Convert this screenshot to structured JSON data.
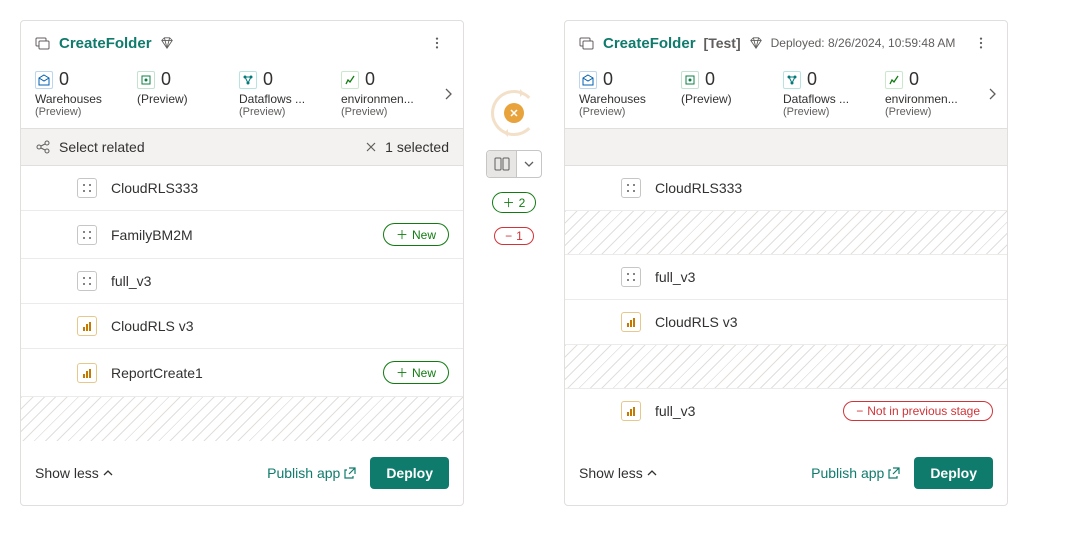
{
  "left": {
    "title": "CreateFolder",
    "stats": [
      {
        "value": "0",
        "label": "Warehouses",
        "sub": "(Preview)",
        "iconColor": "icon-blue"
      },
      {
        "value": "0",
        "label": "(Preview)",
        "sub": "",
        "iconColor": "icon-green"
      },
      {
        "value": "0",
        "label": "Dataflows ...",
        "sub": "(Preview)",
        "iconColor": "icon-teal"
      },
      {
        "value": "0",
        "label": "environmen...",
        "sub": "(Preview)",
        "iconColor": "icon-lime"
      }
    ],
    "selectBar": {
      "label": "Select related",
      "countText": "1 selected"
    },
    "items": [
      {
        "name": "CloudRLS333",
        "icon": "dots",
        "badge": ""
      },
      {
        "name": "FamilyBM2M",
        "icon": "dots",
        "badge": "new"
      },
      {
        "name": "full_v3",
        "icon": "dots",
        "badge": ""
      },
      {
        "name": "CloudRLS v3",
        "icon": "bars",
        "badge": ""
      },
      {
        "name": "ReportCreate1",
        "icon": "bars",
        "badge": "new"
      }
    ],
    "newLabel": "New",
    "showLess": "Show less",
    "publish": "Publish app",
    "deploy": "Deploy"
  },
  "right": {
    "title": "CreateFolder",
    "tag": "[Test]",
    "deployed": "Deployed: 8/26/2024, 10:59:48 AM",
    "stats": [
      {
        "value": "0",
        "label": "Warehouses",
        "sub": "(Preview)",
        "iconColor": "icon-blue"
      },
      {
        "value": "0",
        "label": "(Preview)",
        "sub": "",
        "iconColor": "icon-green"
      },
      {
        "value": "0",
        "label": "Dataflows ...",
        "sub": "(Preview)",
        "iconColor": "icon-teal"
      },
      {
        "value": "0",
        "label": "environmen...",
        "sub": "(Preview)",
        "iconColor": "icon-lime"
      }
    ],
    "items": [
      {
        "type": "row",
        "name": "CloudRLS333",
        "icon": "dots"
      },
      {
        "type": "hatch"
      },
      {
        "type": "row",
        "name": "full_v3",
        "icon": "dots"
      },
      {
        "type": "row",
        "name": "CloudRLS v3",
        "icon": "bars"
      },
      {
        "type": "hatch"
      },
      {
        "type": "row",
        "name": "full_v3",
        "icon": "bars",
        "badge": "notprev"
      }
    ],
    "notPrevLabel": "Not in previous stage",
    "showLess": "Show less",
    "publish": "Publish app",
    "deploy": "Deploy"
  },
  "mid": {
    "plusCount": "2",
    "minusCount": "1"
  }
}
